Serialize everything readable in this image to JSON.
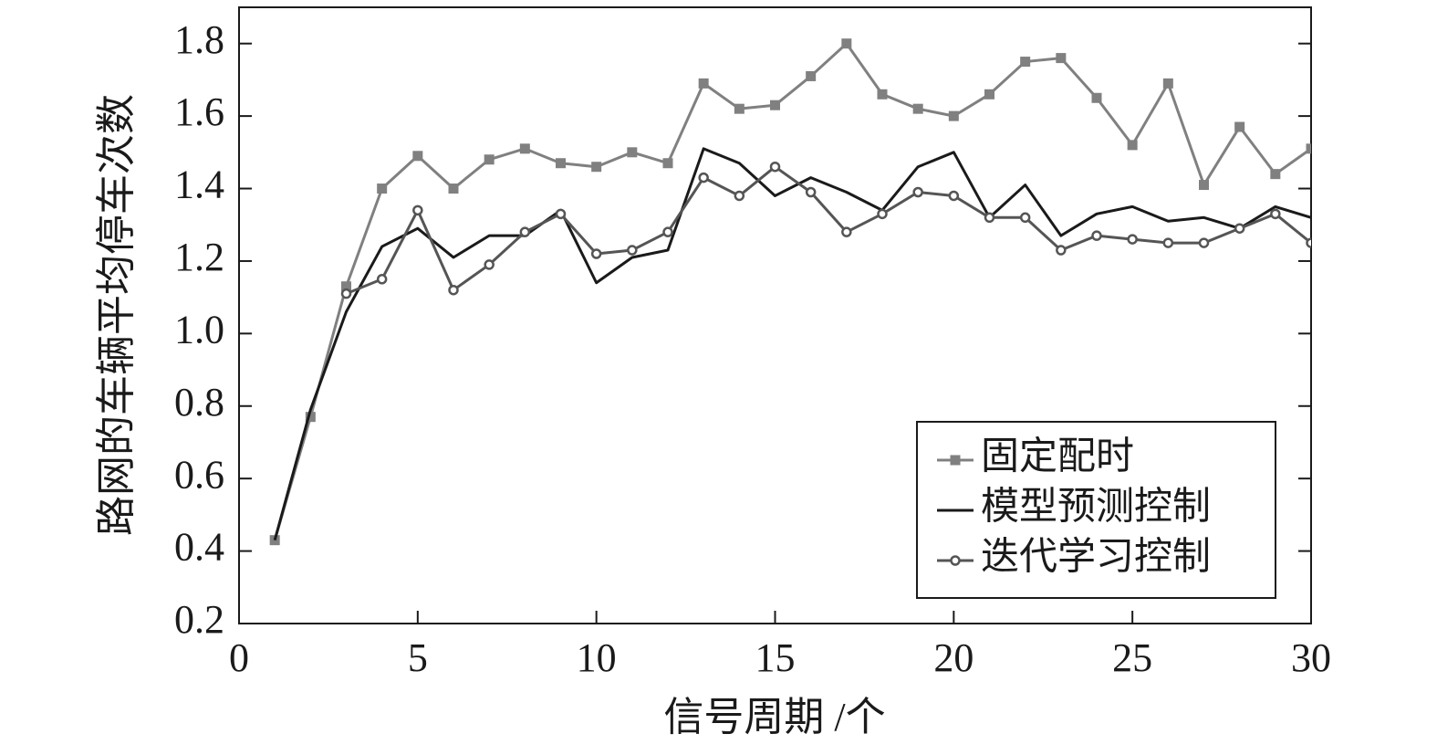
{
  "chart_data": {
    "type": "line",
    "x_label": "信号周期 /个",
    "y_label": "路网的车辆平均停车次数",
    "x": [
      1,
      2,
      3,
      4,
      5,
      6,
      7,
      8,
      9,
      10,
      11,
      12,
      13,
      14,
      15,
      16,
      17,
      18,
      19,
      20,
      21,
      22,
      23,
      24,
      25,
      26,
      27,
      28,
      29,
      30
    ],
    "series": [
      {
        "name": "固定配时",
        "color": "#808080",
        "marker": "square",
        "values": [
          0.43,
          0.77,
          1.13,
          1.4,
          1.49,
          1.4,
          1.48,
          1.51,
          1.47,
          1.46,
          1.5,
          1.47,
          1.69,
          1.62,
          1.63,
          1.71,
          1.8,
          1.66,
          1.62,
          1.6,
          1.66,
          1.75,
          1.76,
          1.65,
          1.52,
          1.69,
          1.41,
          1.57,
          1.44,
          1.51
        ]
      },
      {
        "name": "模型预测控制",
        "color": "#1a1a1a",
        "marker": "none",
        "values": [
          0.43,
          0.79,
          1.06,
          1.24,
          1.29,
          1.21,
          1.27,
          1.27,
          1.34,
          1.14,
          1.21,
          1.23,
          1.51,
          1.47,
          1.38,
          1.43,
          1.39,
          1.34,
          1.46,
          1.5,
          1.32,
          1.41,
          1.27,
          1.33,
          1.35,
          1.31,
          1.32,
          1.29,
          1.35,
          1.32
        ]
      },
      {
        "name": "迭代学习控制",
        "color": "#555555",
        "marker": "circle",
        "values": [
          null,
          null,
          1.11,
          1.15,
          1.34,
          1.12,
          1.19,
          1.28,
          1.33,
          1.22,
          1.23,
          1.28,
          1.43,
          1.38,
          1.46,
          1.39,
          1.28,
          1.33,
          1.39,
          1.38,
          1.32,
          1.32,
          1.23,
          1.27,
          1.26,
          1.25,
          1.25,
          1.29,
          1.33,
          1.25
        ]
      }
    ],
    "xlim": [
      0,
      30
    ],
    "xticks": [
      0,
      5,
      10,
      15,
      20,
      25,
      30
    ],
    "ylim": [
      0.2,
      1.9
    ],
    "yticks": [
      0.2,
      0.4,
      0.6,
      0.8,
      {
        "value": 1,
        "label": "1.0"
      },
      1.2,
      1.4,
      1.6,
      1.8
    ],
    "legend": "lower right"
  }
}
